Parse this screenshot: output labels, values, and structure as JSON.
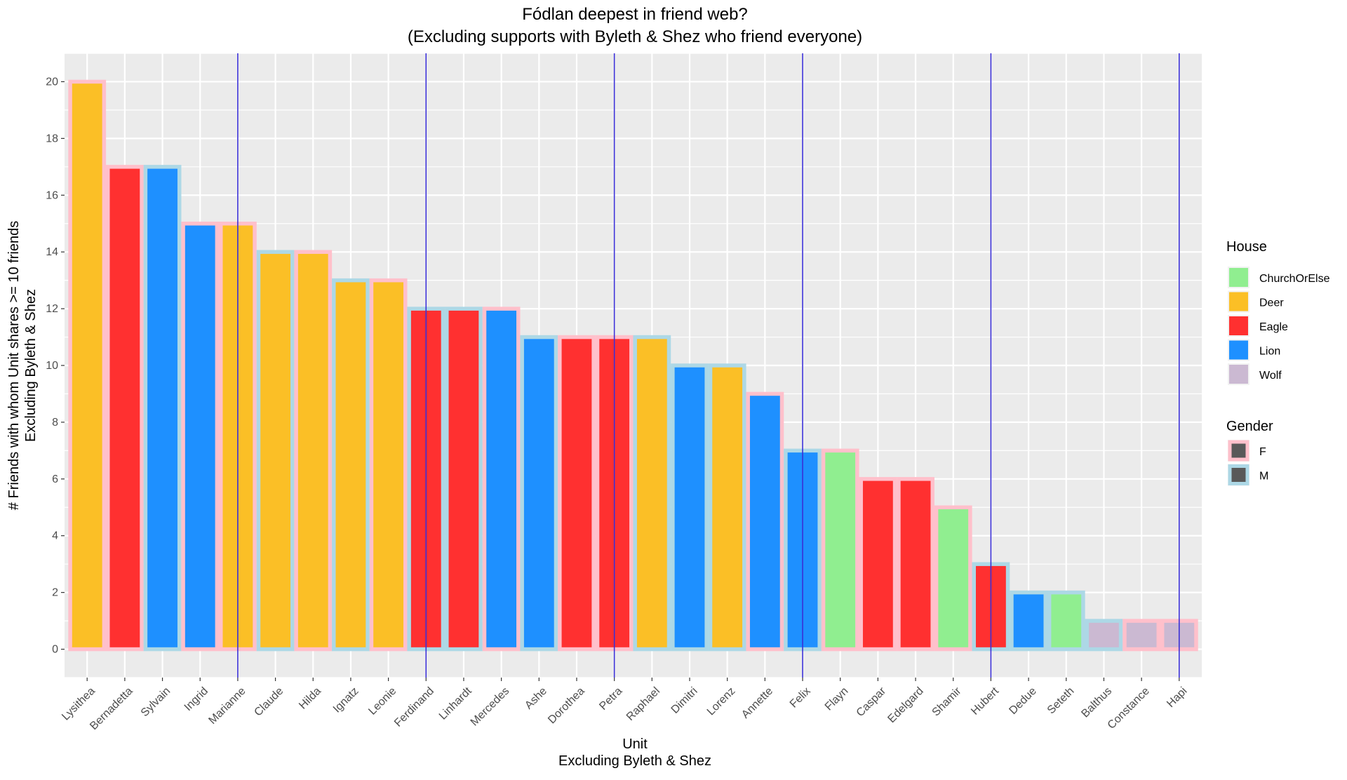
{
  "chart_data": {
    "type": "bar",
    "title": "Fódlan deepest in friend web?",
    "subtitle": "(Excluding supports with Byleth & Shez who friend everyone)",
    "xlabel": "Unit",
    "xlabel_sub": "Excluding Byleth & Shez",
    "ylabel": "# Friends with whom Unit shares >= 10 friends",
    "ylabel_sub": "Excluding Byleth & Shez",
    "ylim": [
      -1,
      21
    ],
    "yticks": [
      0,
      2,
      4,
      6,
      8,
      10,
      12,
      14,
      16,
      18,
      20
    ],
    "grid": true,
    "legend_position": "right",
    "categories": [
      "Lysithea",
      "Bernadetta",
      "Sylvain",
      "Ingrid",
      "Marianne",
      "Claude",
      "Hilda",
      "Ignatz",
      "Leonie",
      "Ferdinand",
      "Linhardt",
      "Mercedes",
      "Ashe",
      "Dorothea",
      "Petra",
      "Raphael",
      "Dimitri",
      "Lorenz",
      "Annette",
      "Felix",
      "Flayn",
      "Caspar",
      "Edelgard",
      "Shamir",
      "Hubert",
      "Dedue",
      "Seteth",
      "Balthus",
      "Constance",
      "Hapi"
    ],
    "values": [
      20,
      17,
      17,
      15,
      15,
      14,
      14,
      13,
      13,
      12,
      12,
      12,
      11,
      11,
      11,
      11,
      10,
      10,
      9,
      7,
      7,
      6,
      6,
      5,
      3,
      2,
      2,
      1,
      1,
      1
    ],
    "house": [
      "Deer",
      "Eagle",
      "Lion",
      "Lion",
      "Deer",
      "Deer",
      "Deer",
      "Deer",
      "Deer",
      "Eagle",
      "Eagle",
      "Lion",
      "Lion",
      "Eagle",
      "Eagle",
      "Deer",
      "Lion",
      "Deer",
      "Lion",
      "Lion",
      "ChurchOrElse",
      "Eagle",
      "Eagle",
      "ChurchOrElse",
      "Eagle",
      "Lion",
      "ChurchOrElse",
      "Wolf",
      "Wolf",
      "Wolf"
    ],
    "gender": [
      "F",
      "F",
      "M",
      "F",
      "F",
      "M",
      "F",
      "M",
      "F",
      "M",
      "M",
      "F",
      "M",
      "F",
      "F",
      "M",
      "M",
      "M",
      "F",
      "M",
      "F",
      "F",
      "F",
      "F",
      "M",
      "M",
      "M",
      "M",
      "F",
      "F"
    ],
    "vlines_at": [
      "Marianne",
      "Ferdinand",
      "Petra",
      "Felix",
      "Hubert",
      "Hapi"
    ],
    "vline_color": "#3a2fd6",
    "legend_house": {
      "title": "House",
      "items": [
        {
          "label": "ChurchOrElse",
          "color": "#90ee90"
        },
        {
          "label": "Deer",
          "color": "#fbbf26"
        },
        {
          "label": "Eagle",
          "color": "#ff3030"
        },
        {
          "label": "Lion",
          "color": "#1e90ff"
        },
        {
          "label": "Wolf",
          "color": "#cbb9d2"
        }
      ]
    },
    "legend_gender": {
      "title": "Gender",
      "items": [
        {
          "label": "F",
          "color": "#ffc0cb"
        },
        {
          "label": "M",
          "color": "#add8e6"
        }
      ]
    },
    "panel_color": "#ebebeb",
    "gridline_color": "#ffffff"
  }
}
